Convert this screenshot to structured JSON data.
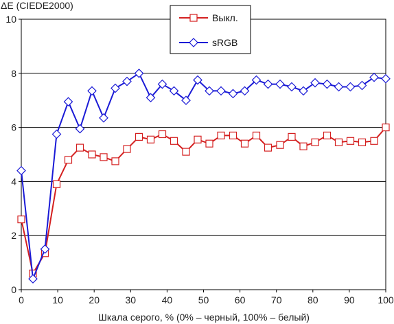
{
  "chart_data": {
    "type": "line",
    "ylabel": "ΔE (CIEDE2000)",
    "xlabel": "Шкала серого, % (0% – черный, 100% – белый)",
    "xlim": [
      0,
      100
    ],
    "ylim": [
      0,
      10
    ],
    "xticks": [
      0,
      10,
      20,
      30,
      40,
      50,
      60,
      70,
      80,
      90,
      100
    ],
    "yticks": [
      0,
      2,
      4,
      6,
      8,
      10
    ],
    "grid": "horizontal",
    "legend_position": "top-center",
    "x": [
      0,
      3.2,
      6.5,
      9.7,
      12.9,
      16.1,
      19.4,
      22.6,
      25.8,
      29.0,
      32.3,
      35.5,
      38.7,
      41.9,
      45.2,
      48.4,
      51.6,
      54.8,
      58.1,
      61.3,
      64.5,
      67.7,
      71.0,
      74.2,
      77.4,
      80.6,
      83.9,
      87.1,
      90.3,
      93.5,
      96.8,
      100
    ],
    "series": [
      {
        "name": "Выкл.",
        "color": "#d42020",
        "marker": "square",
        "values": [
          2.6,
          0.6,
          1.35,
          3.9,
          4.8,
          5.25,
          5.0,
          4.9,
          4.75,
          5.2,
          5.65,
          5.55,
          5.75,
          5.5,
          5.1,
          5.55,
          5.4,
          5.7,
          5.7,
          5.4,
          5.7,
          5.25,
          5.35,
          5.65,
          5.3,
          5.45,
          5.7,
          5.45,
          5.5,
          5.45,
          5.5,
          6.0
        ]
      },
      {
        "name": "sRGB",
        "color": "#1a1ad6",
        "marker": "diamond",
        "values": [
          4.4,
          0.4,
          1.5,
          5.75,
          6.95,
          5.95,
          7.35,
          6.35,
          7.45,
          7.7,
          8.0,
          7.1,
          7.6,
          7.35,
          7.0,
          7.75,
          7.35,
          7.35,
          7.25,
          7.35,
          7.75,
          7.6,
          7.6,
          7.5,
          7.35,
          7.65,
          7.6,
          7.5,
          7.5,
          7.55,
          7.85,
          7.8
        ]
      }
    ]
  }
}
